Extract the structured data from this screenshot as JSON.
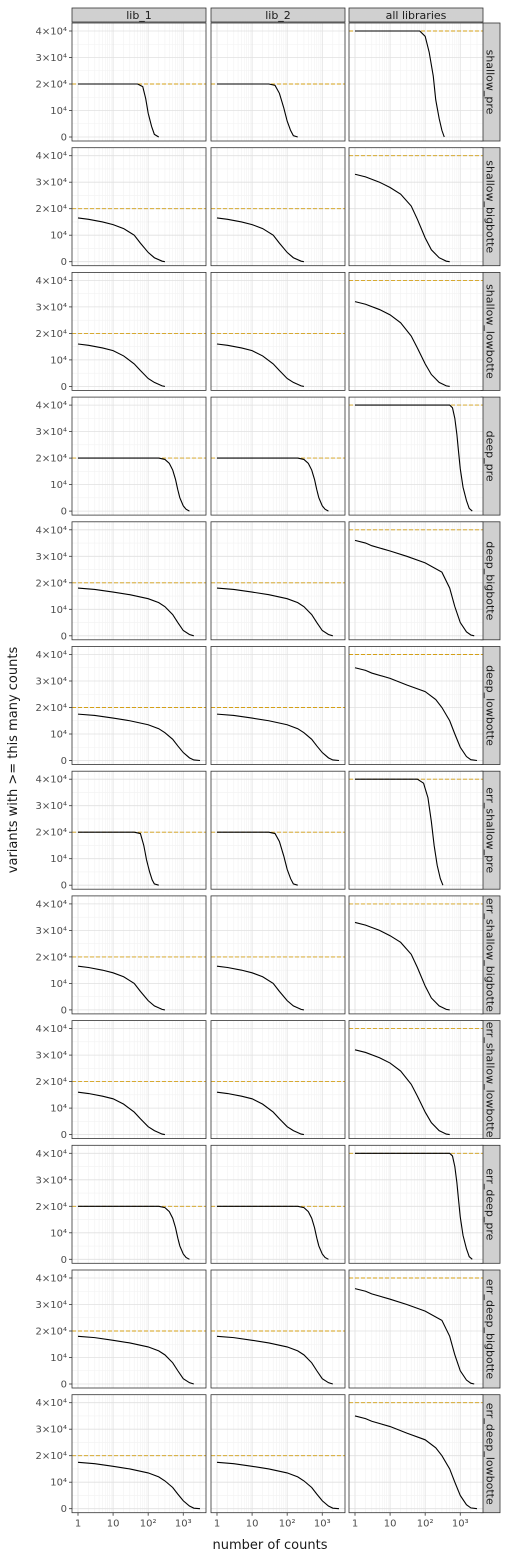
{
  "chart_data": {
    "type": "line",
    "xlabel": "number of counts",
    "ylabel": "variants with >= this many counts",
    "x_scale": "log10",
    "xlim": [
      1,
      3000
    ],
    "ylim": [
      0,
      40000
    ],
    "x_ticks": [
      1,
      10,
      100,
      1000
    ],
    "x_tick_labels": [
      "1",
      "10",
      "10²",
      "10³"
    ],
    "y_ticks": [
      0,
      10000,
      20000,
      30000,
      40000
    ],
    "y_tick_labels": [
      "0",
      "10⁴",
      "2×10⁴",
      "3×10⁴",
      "4×10⁴"
    ],
    "columns": [
      "lib_1",
      "lib_2",
      "all libraries"
    ],
    "rows": [
      "shallow_pre",
      "shallow_bigbotte",
      "shallow_lowbotte",
      "deep_pre",
      "deep_bigbotte",
      "deep_lowbotte",
      "err_shallow_pre",
      "err_shallow_bigbotte",
      "err_shallow_lowbotte",
      "err_deep_pre",
      "err_deep_bigbotte",
      "err_deep_lowbotte"
    ],
    "reference_lines": {
      "color": "#d4a017",
      "style": "dashed",
      "lib_1": 20000,
      "lib_2": 20000,
      "all libraries": 40000
    },
    "grid": true,
    "panels": [
      {
        "row": "shallow_pre",
        "column": "lib_1",
        "x": [
          1,
          50,
          70,
          85,
          100,
          125,
          150,
          200
        ],
        "y": [
          20000,
          20000,
          19000,
          14500,
          9000,
          4000,
          1000,
          0
        ]
      },
      {
        "row": "shallow_pre",
        "column": "lib_2",
        "x": [
          1,
          30,
          45,
          60,
          80,
          100,
          125,
          150,
          200
        ],
        "y": [
          20000,
          20000,
          19500,
          16500,
          11000,
          6000,
          2500,
          500,
          0
        ]
      },
      {
        "row": "shallow_pre",
        "column": "all libraries",
        "x": [
          1,
          70,
          100,
          130,
          170,
          200,
          250,
          300,
          350
        ],
        "y": [
          40000,
          40000,
          38000,
          32000,
          23000,
          14000,
          7000,
          2500,
          0
        ]
      },
      {
        "row": "shallow_bigbotte",
        "column": "lib_1",
        "x": [
          1,
          2,
          5,
          10,
          20,
          40,
          60,
          100,
          150,
          250,
          300
        ],
        "y": [
          16500,
          16000,
          15000,
          14000,
          12500,
          10000,
          7000,
          3500,
          1500,
          200,
          0
        ]
      },
      {
        "row": "shallow_bigbotte",
        "column": "lib_2",
        "x": [
          1,
          2,
          5,
          10,
          20,
          40,
          60,
          100,
          150,
          250,
          300
        ],
        "y": [
          16500,
          16000,
          15000,
          14000,
          12500,
          10000,
          7000,
          3500,
          1500,
          200,
          0
        ]
      },
      {
        "row": "shallow_bigbotte",
        "column": "all libraries",
        "x": [
          1,
          2,
          5,
          10,
          20,
          40,
          60,
          100,
          150,
          250,
          400,
          500
        ],
        "y": [
          33000,
          32000,
          30000,
          28000,
          25500,
          21000,
          16000,
          9000,
          4500,
          1500,
          200,
          0
        ]
      },
      {
        "row": "shallow_lowbotte",
        "column": "lib_1",
        "x": [
          1,
          2,
          5,
          10,
          20,
          40,
          60,
          100,
          150,
          250,
          300
        ],
        "y": [
          16000,
          15500,
          14500,
          13500,
          11500,
          8500,
          6000,
          3000,
          1500,
          200,
          0
        ]
      },
      {
        "row": "shallow_lowbotte",
        "column": "lib_2",
        "x": [
          1,
          2,
          5,
          10,
          20,
          40,
          60,
          100,
          150,
          250,
          300
        ],
        "y": [
          16000,
          15500,
          14500,
          13500,
          11500,
          8500,
          6000,
          3000,
          1500,
          200,
          0
        ]
      },
      {
        "row": "shallow_lowbotte",
        "column": "all libraries",
        "x": [
          1,
          2,
          5,
          10,
          20,
          40,
          60,
          100,
          150,
          250,
          400,
          500
        ],
        "y": [
          32000,
          31000,
          29000,
          27000,
          24000,
          19000,
          14500,
          8500,
          4500,
          1500,
          200,
          0
        ]
      },
      {
        "row": "deep_pre",
        "column": "lib_1",
        "x": [
          1,
          200,
          300,
          400,
          500,
          600,
          700,
          800,
          1000,
          1200,
          1500
        ],
        "y": [
          20000,
          20000,
          19500,
          18000,
          15500,
          12000,
          8000,
          5000,
          2000,
          700,
          0
        ]
      },
      {
        "row": "deep_pre",
        "column": "lib_2",
        "x": [
          1,
          200,
          300,
          400,
          500,
          600,
          700,
          800,
          1000,
          1200,
          1500
        ],
        "y": [
          20000,
          20000,
          19500,
          18000,
          15500,
          12000,
          8000,
          5000,
          2000,
          700,
          0
        ]
      },
      {
        "row": "deep_pre",
        "column": "all libraries",
        "x": [
          1,
          500,
          600,
          700,
          800,
          900,
          1000,
          1200,
          1500,
          1800,
          2200
        ],
        "y": [
          40000,
          40000,
          39000,
          35000,
          29000,
          22000,
          16000,
          9000,
          4000,
          1000,
          0
        ]
      },
      {
        "row": "deep_bigbotte",
        "column": "lib_1",
        "x": [
          1,
          3,
          10,
          30,
          100,
          200,
          300,
          500,
          700,
          1000,
          1500,
          2000
        ],
        "y": [
          18000,
          17500,
          16500,
          15500,
          14000,
          12500,
          11000,
          8000,
          5000,
          2000,
          500,
          0
        ]
      },
      {
        "row": "deep_bigbotte",
        "column": "lib_2",
        "x": [
          1,
          3,
          10,
          30,
          100,
          200,
          300,
          500,
          700,
          1000,
          1500,
          2000
        ],
        "y": [
          18000,
          17500,
          16500,
          15500,
          14000,
          12500,
          11000,
          8000,
          5000,
          2000,
          500,
          0
        ]
      },
      {
        "row": "deep_bigbotte",
        "column": "all libraries",
        "x": [
          1,
          2,
          3,
          10,
          30,
          100,
          300,
          500,
          700,
          1000,
          1500,
          2000,
          2500
        ],
        "y": [
          36000,
          35000,
          34000,
          32000,
          30000,
          27500,
          24000,
          18000,
          11000,
          5000,
          1500,
          300,
          0
        ]
      },
      {
        "row": "deep_lowbotte",
        "column": "lib_1",
        "x": [
          1,
          3,
          10,
          30,
          100,
          200,
          300,
          500,
          700,
          1000,
          1500,
          2000,
          3000
        ],
        "y": [
          17500,
          17000,
          16000,
          15000,
          13500,
          12000,
          10500,
          8000,
          5500,
          3000,
          1000,
          200,
          0
        ]
      },
      {
        "row": "deep_lowbotte",
        "column": "lib_2",
        "x": [
          1,
          3,
          10,
          30,
          100,
          200,
          300,
          500,
          700,
          1000,
          1500,
          2000,
          3000
        ],
        "y": [
          17500,
          17000,
          16000,
          15000,
          13500,
          12000,
          10500,
          8000,
          5500,
          3000,
          1000,
          200,
          0
        ]
      },
      {
        "row": "deep_lowbotte",
        "column": "all libraries",
        "x": [
          1,
          2,
          3,
          10,
          30,
          100,
          200,
          300,
          500,
          700,
          1000,
          1500,
          2000,
          3000
        ],
        "y": [
          35000,
          34000,
          33000,
          31000,
          28500,
          26000,
          23000,
          20000,
          15000,
          10000,
          5000,
          1500,
          300,
          0
        ]
      },
      {
        "row": "err_shallow_pre",
        "column": "lib_1",
        "x": [
          1,
          40,
          60,
          75,
          90,
          110,
          130,
          150,
          200
        ],
        "y": [
          20000,
          20000,
          19500,
          15000,
          9500,
          5000,
          2000,
          500,
          0
        ]
      },
      {
        "row": "err_shallow_pre",
        "column": "lib_2",
        "x": [
          1,
          30,
          45,
          60,
          80,
          100,
          125,
          150,
          200
        ],
        "y": [
          20000,
          20000,
          19500,
          16500,
          11000,
          6000,
          2500,
          500,
          0
        ]
      },
      {
        "row": "err_shallow_pre",
        "column": "all libraries",
        "x": [
          1,
          60,
          90,
          120,
          150,
          180,
          220,
          270,
          320
        ],
        "y": [
          40000,
          40000,
          38500,
          33000,
          24000,
          15000,
          7500,
          2500,
          0
        ]
      },
      {
        "row": "err_shallow_bigbotte",
        "column": "lib_1",
        "x": [
          1,
          2,
          5,
          10,
          20,
          40,
          60,
          100,
          150,
          250,
          300
        ],
        "y": [
          16500,
          16000,
          15000,
          14000,
          12500,
          10000,
          7000,
          3500,
          1500,
          200,
          0
        ]
      },
      {
        "row": "err_shallow_bigbotte",
        "column": "lib_2",
        "x": [
          1,
          2,
          5,
          10,
          20,
          40,
          60,
          100,
          150,
          250,
          300
        ],
        "y": [
          16500,
          16000,
          15000,
          14000,
          12500,
          10000,
          7000,
          3500,
          1500,
          200,
          0
        ]
      },
      {
        "row": "err_shallow_bigbotte",
        "column": "all libraries",
        "x": [
          1,
          2,
          5,
          10,
          20,
          40,
          60,
          100,
          150,
          250,
          400,
          500
        ],
        "y": [
          33000,
          32000,
          30000,
          28000,
          25500,
          21000,
          16000,
          9000,
          4500,
          1500,
          200,
          0
        ]
      },
      {
        "row": "err_shallow_lowbotte",
        "column": "lib_1",
        "x": [
          1,
          2,
          5,
          10,
          20,
          40,
          60,
          100,
          150,
          250,
          300
        ],
        "y": [
          16000,
          15500,
          14500,
          13500,
          11500,
          8500,
          6000,
          3000,
          1500,
          200,
          0
        ]
      },
      {
        "row": "err_shallow_lowbotte",
        "column": "lib_2",
        "x": [
          1,
          2,
          5,
          10,
          20,
          40,
          60,
          100,
          150,
          250,
          300
        ],
        "y": [
          16000,
          15500,
          14500,
          13500,
          11500,
          8500,
          6000,
          3000,
          1500,
          200,
          0
        ]
      },
      {
        "row": "err_shallow_lowbotte",
        "column": "all libraries",
        "x": [
          1,
          2,
          5,
          10,
          20,
          40,
          60,
          100,
          150,
          250,
          400,
          500
        ],
        "y": [
          32000,
          31000,
          29000,
          27000,
          24000,
          19000,
          14500,
          8500,
          4500,
          1500,
          200,
          0
        ]
      },
      {
        "row": "err_deep_pre",
        "column": "lib_1",
        "x": [
          1,
          200,
          300,
          400,
          500,
          600,
          700,
          800,
          1000,
          1200,
          1500
        ],
        "y": [
          20000,
          20000,
          19500,
          18000,
          15500,
          12000,
          8000,
          5000,
          2000,
          700,
          0
        ]
      },
      {
        "row": "err_deep_pre",
        "column": "lib_2",
        "x": [
          1,
          200,
          300,
          400,
          500,
          600,
          700,
          800,
          1000,
          1200,
          1500
        ],
        "y": [
          20000,
          20000,
          19500,
          18000,
          15500,
          12000,
          8000,
          5000,
          2000,
          700,
          0
        ]
      },
      {
        "row": "err_deep_pre",
        "column": "all libraries",
        "x": [
          1,
          500,
          600,
          700,
          800,
          900,
          1000,
          1200,
          1500,
          1800,
          2200
        ],
        "y": [
          40000,
          40000,
          39000,
          35000,
          29000,
          22000,
          16000,
          9000,
          4000,
          1000,
          0
        ]
      },
      {
        "row": "err_deep_bigbotte",
        "column": "lib_1",
        "x": [
          1,
          3,
          10,
          30,
          100,
          200,
          300,
          500,
          700,
          1000,
          1500,
          2000
        ],
        "y": [
          18000,
          17500,
          16500,
          15500,
          14000,
          12500,
          11000,
          8000,
          5000,
          2000,
          500,
          0
        ]
      },
      {
        "row": "err_deep_bigbotte",
        "column": "lib_2",
        "x": [
          1,
          3,
          10,
          30,
          100,
          200,
          300,
          500,
          700,
          1000,
          1500,
          2000
        ],
        "y": [
          18000,
          17500,
          16500,
          15500,
          14000,
          12500,
          11000,
          8000,
          5000,
          2000,
          500,
          0
        ]
      },
      {
        "row": "err_deep_bigbotte",
        "column": "all libraries",
        "x": [
          1,
          2,
          3,
          10,
          30,
          100,
          300,
          500,
          700,
          1000,
          1500,
          2000,
          2500
        ],
        "y": [
          36000,
          35000,
          34000,
          32000,
          30000,
          27500,
          24000,
          18000,
          11000,
          5000,
          1500,
          300,
          0
        ]
      },
      {
        "row": "err_deep_lowbotte",
        "column": "lib_1",
        "x": [
          1,
          3,
          10,
          30,
          100,
          200,
          300,
          500,
          700,
          1000,
          1500,
          2000,
          3000
        ],
        "y": [
          17500,
          17000,
          16000,
          15000,
          13500,
          12000,
          10500,
          8000,
          5500,
          3000,
          1000,
          200,
          0
        ]
      },
      {
        "row": "err_deep_lowbotte",
        "column": "lib_2",
        "x": [
          1,
          3,
          10,
          30,
          100,
          200,
          300,
          500,
          700,
          1000,
          1500,
          2000,
          3000
        ],
        "y": [
          17500,
          17000,
          16000,
          15000,
          13500,
          12000,
          10500,
          8000,
          5500,
          3000,
          1000,
          200,
          0
        ]
      },
      {
        "row": "err_deep_lowbotte",
        "column": "all libraries",
        "x": [
          1,
          2,
          3,
          10,
          30,
          100,
          200,
          300,
          500,
          700,
          1000,
          1500,
          2000,
          3000
        ],
        "y": [
          35000,
          34000,
          33000,
          31000,
          28500,
          26000,
          23000,
          20000,
          15000,
          10000,
          5000,
          1500,
          300,
          0
        ]
      }
    ]
  },
  "colors": {
    "curve": "#000000",
    "reference": "#d4a017",
    "panel_bg": "#ffffff",
    "grid_major": "#e0e0e0",
    "grid_minor": "#f2f2f2",
    "strip_bg": "#d0d0d0",
    "border": "#333333"
  }
}
